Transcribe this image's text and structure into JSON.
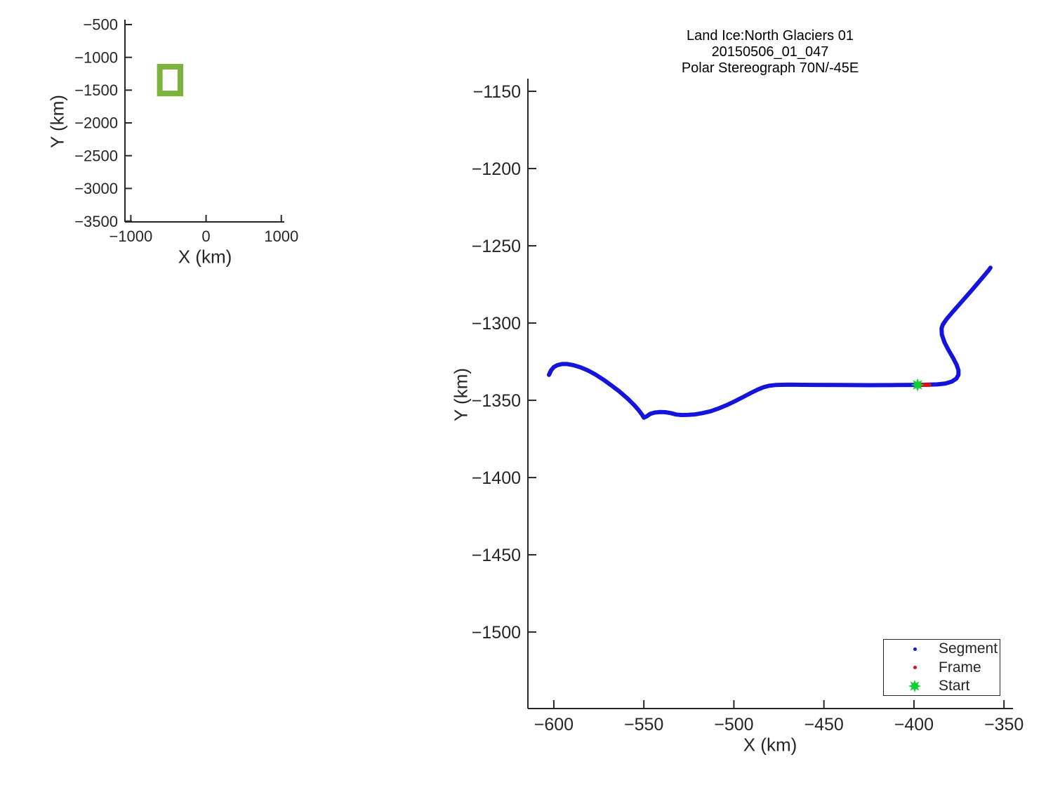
{
  "figure": {
    "background": "#ffffff",
    "text_color": "#262626",
    "axis_color": "#262626"
  },
  "chart_data": [
    {
      "id": "overview",
      "type": "line",
      "role": "location-overview-map",
      "xlabel": "X (km)",
      "ylabel": "Y (km)",
      "xlim": [
        -1078,
        1040
      ],
      "ylim": [
        -425,
        -3510
      ],
      "xticks": [
        -1000,
        0,
        1000
      ],
      "yticks": [
        -500,
        -1000,
        -1500,
        -2000,
        -2500,
        -3000,
        -3500
      ],
      "grid": false,
      "extent_box": {
        "x": [
          -615,
          -341
        ],
        "y": [
          -1143,
          -1551
        ],
        "color": "#7cb33c",
        "note": "thick green rectangle marking the main-plot zoom extent"
      }
    },
    {
      "id": "main",
      "type": "line",
      "title_lines": [
        "Land Ice:North Glaciers 01",
        "20150506_01_047",
        "Polar Stereograph 70N/-45E"
      ],
      "xlabel": "X (km)",
      "ylabel": "Y (km)",
      "xlim": [
        -614.4,
        -345.0
      ],
      "ylim": [
        -1141.8,
        -1549.5
      ],
      "xticks": [
        -600,
        -550,
        -500,
        -450,
        -400,
        -350
      ],
      "yticks": [
        -1150,
        -1200,
        -1250,
        -1300,
        -1350,
        -1400,
        -1450,
        -1500
      ],
      "grid": false,
      "legend_position": "southeast",
      "series": [
        {
          "name": "Segment",
          "color": "#1414dc",
          "marker": "dot",
          "style": "line",
          "points": [
            [
              -602.7,
              -1333.5
            ],
            [
              -601.5,
              -1330.5
            ],
            [
              -600.0,
              -1328.5
            ],
            [
              -598.0,
              -1327.2
            ],
            [
              -595.5,
              -1326.5
            ],
            [
              -592.5,
              -1326.5
            ],
            [
              -589.0,
              -1327.3
            ],
            [
              -585.0,
              -1328.7
            ],
            [
              -581.0,
              -1330.7
            ],
            [
              -577.0,
              -1333.2
            ],
            [
              -572.5,
              -1336.6
            ],
            [
              -568.0,
              -1340.4
            ],
            [
              -563.5,
              -1344.4
            ],
            [
              -559.0,
              -1348.9
            ],
            [
              -555.5,
              -1352.9
            ],
            [
              -552.8,
              -1356.5
            ],
            [
              -551.0,
              -1359.3
            ],
            [
              -550.0,
              -1361.2
            ],
            [
              -548.5,
              -1360.4
            ],
            [
              -546.5,
              -1358.8
            ],
            [
              -544.0,
              -1357.9
            ],
            [
              -541.0,
              -1357.6
            ],
            [
              -538.0,
              -1357.7
            ],
            [
              -535.0,
              -1358.3
            ],
            [
              -532.0,
              -1359.2
            ],
            [
              -529.0,
              -1359.5
            ],
            [
              -525.5,
              -1359.4
            ],
            [
              -521.5,
              -1359.1
            ],
            [
              -517.5,
              -1358.3
            ],
            [
              -513.0,
              -1357.1
            ],
            [
              -508.5,
              -1355.3
            ],
            [
              -504.0,
              -1353.1
            ],
            [
              -499.5,
              -1350.6
            ],
            [
              -495.0,
              -1347.9
            ],
            [
              -490.5,
              -1345.2
            ],
            [
              -486.5,
              -1342.9
            ],
            [
              -483.5,
              -1341.5
            ],
            [
              -480.5,
              -1340.6
            ],
            [
              -477.0,
              -1340.1
            ],
            [
              -470.0,
              -1339.9
            ],
            [
              -455.0,
              -1340.0
            ],
            [
              -440.0,
              -1340.1
            ],
            [
              -425.0,
              -1340.2
            ],
            [
              -410.0,
              -1340.1
            ],
            [
              -398.0,
              -1340.0
            ],
            [
              -392.0,
              -1339.9
            ],
            [
              -387.0,
              -1339.7
            ],
            [
              -382.5,
              -1339.1
            ],
            [
              -379.0,
              -1337.9
            ],
            [
              -376.5,
              -1336.0
            ],
            [
              -375.3,
              -1333.5
            ],
            [
              -375.3,
              -1330.5
            ],
            [
              -376.3,
              -1327.0
            ],
            [
              -378.3,
              -1322.5
            ],
            [
              -380.8,
              -1317.5
            ],
            [
              -383.0,
              -1312.5
            ],
            [
              -384.5,
              -1307.5
            ],
            [
              -384.7,
              -1303.5
            ],
            [
              -384.0,
              -1301.0
            ],
            [
              -382.0,
              -1297.6
            ],
            [
              -378.5,
              -1292.8
            ],
            [
              -373.5,
              -1286.2
            ],
            [
              -368.0,
              -1278.9
            ],
            [
              -362.5,
              -1271.4
            ],
            [
              -358.5,
              -1265.8
            ],
            [
              -357.5,
              -1264.2
            ]
          ]
        },
        {
          "name": "Frame",
          "color": "#dd1111",
          "marker": "dot",
          "style": "markers",
          "points": [
            [
              -396.0,
              -1340.0
            ],
            [
              -394.5,
              -1340.0
            ],
            [
              -393.0,
              -1340.0
            ],
            [
              -391.5,
              -1340.0
            ]
          ]
        },
        {
          "name": "Start",
          "color": "#0fce32",
          "marker": "star",
          "style": "markers",
          "points": [
            [
              -398.0,
              -1340.0
            ]
          ]
        }
      ]
    }
  ]
}
